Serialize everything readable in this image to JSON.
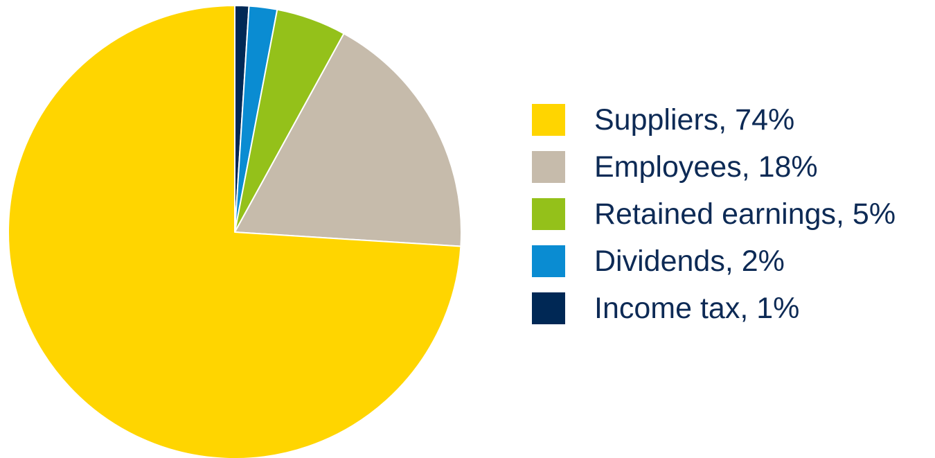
{
  "chart_data": {
    "type": "pie",
    "title": "",
    "start_angle_deg": 0,
    "direction": "clockwise",
    "legend_position": "right",
    "slices": [
      {
        "label": "Income tax, 1%",
        "name": "Income tax",
        "value": 1,
        "color": "#002855"
      },
      {
        "label": "Dividends, 2%",
        "name": "Dividends",
        "value": 2,
        "color": "#0a8cd2"
      },
      {
        "label": "Retained earnings, 5%",
        "name": "Retained earnings",
        "value": 5,
        "color": "#94c11a"
      },
      {
        "label": "Employees, 18%",
        "name": "Employees",
        "value": 18,
        "color": "#c6bbab"
      },
      {
        "label": "Suppliers, 74%",
        "name": "Suppliers",
        "value": 74,
        "color": "#ffd500"
      }
    ],
    "legend_order": [
      4,
      3,
      2,
      1,
      0
    ]
  }
}
